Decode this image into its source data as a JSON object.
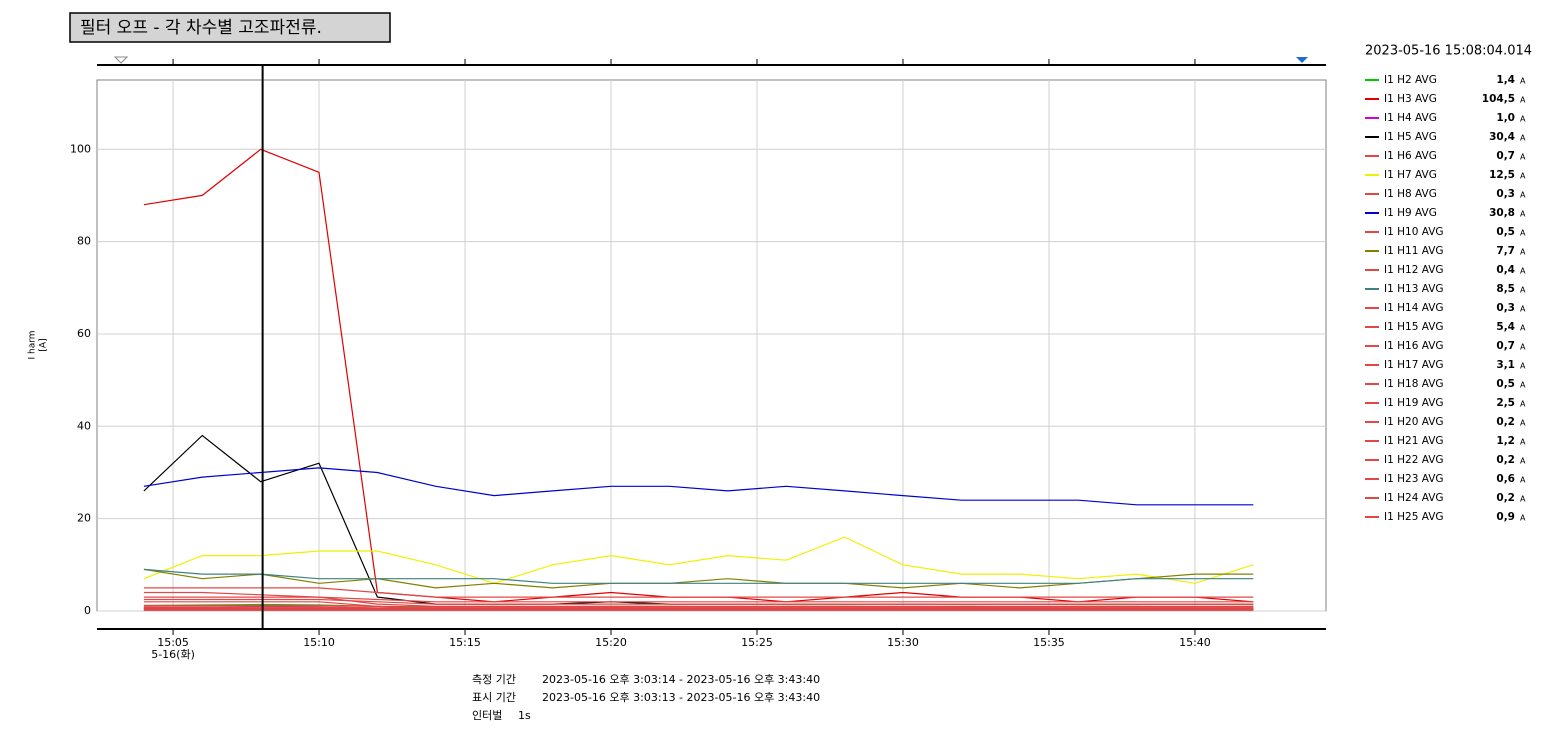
{
  "chart_data": {
    "type": "line",
    "title": "필터 오프 - 각 차수별 고조파전류.",
    "cursor_time": "2023-05-16 15:08:04.014",
    "ylabel": "I harm",
    "yunit_label": "[A]",
    "unit": "A",
    "x": [
      "15:04",
      "15:06",
      "15:08",
      "15:10",
      "15:12",
      "15:14",
      "15:16",
      "15:18",
      "15:20",
      "15:22",
      "15:24",
      "15:26",
      "15:28",
      "15:30",
      "15:32",
      "15:34",
      "15:36",
      "15:38",
      "15:40",
      "15:42"
    ],
    "xlim": [
      "15:03:13",
      "15:43:40"
    ],
    "xticks": [
      "15:05",
      "15:10",
      "15:15",
      "15:20",
      "15:25",
      "15:30",
      "15:35",
      "15:40"
    ],
    "x_date_label": "5-16(화)",
    "ylim": [
      0,
      115
    ],
    "yticks": [
      0,
      20,
      40,
      60,
      80,
      100
    ],
    "grid": true,
    "series": [
      {
        "name": "I1 H2 AVG",
        "color": "#00c800",
        "cursor_value": 1.4,
        "cursor_value_label": "1,4",
        "values": [
          1.2,
          1.3,
          1.4,
          1.3,
          1.0,
          0.9,
          1.0,
          0.9,
          1.0,
          1.0,
          0.9,
          1.0,
          1.0,
          0.9,
          1.0,
          0.9,
          1.0,
          1.0,
          0.9,
          1.0
        ]
      },
      {
        "name": "I1 H3 AVG",
        "color": "#e00000",
        "cursor_value": 104.5,
        "cursor_value_label": "104,5",
        "values": [
          88,
          90,
          100,
          95,
          4,
          3,
          2,
          3,
          4,
          3,
          3,
          2,
          3,
          4,
          3,
          3,
          2,
          3,
          3,
          2
        ]
      },
      {
        "name": "I1 H4 AVG",
        "color": "#d000d0",
        "cursor_value": 1.0,
        "cursor_value_label": "1,0",
        "values": [
          0.8,
          0.8,
          1.0,
          0.9,
          0.6,
          0.5,
          0.5,
          0.5,
          0.6,
          0.5,
          0.5,
          0.5,
          0.5,
          0.5,
          0.6,
          0.5,
          0.5,
          0.5,
          0.5,
          0.5
        ]
      },
      {
        "name": "I1 H5 AVG",
        "color": "#000000",
        "cursor_value": 30.4,
        "cursor_value_label": "30,4",
        "values": [
          26,
          38,
          28,
          32,
          3,
          1.5,
          1.5,
          1.5,
          2,
          1.5,
          1.5,
          1.5,
          1.5,
          1.5,
          1.5,
          1.5,
          1.5,
          1.5,
          1.5,
          1.5
        ]
      },
      {
        "name": "I1 H6 AVG",
        "color": "#e04848",
        "cursor_value": 0.7,
        "cursor_value_label": "0,7",
        "values": [
          4,
          4,
          3.5,
          3,
          1.5,
          1,
          1,
          1,
          1,
          1,
          1,
          1,
          1,
          1,
          1,
          1,
          1,
          1,
          1,
          1
        ]
      },
      {
        "name": "I1 H7 AVG",
        "color": "#f0f000",
        "cursor_value": 12.5,
        "cursor_value_label": "12,5",
        "values": [
          7,
          12,
          12,
          13,
          13,
          10,
          6,
          10,
          12,
          10,
          12,
          11,
          16,
          10,
          8,
          8,
          7,
          8,
          6,
          10
        ]
      },
      {
        "name": "I1 H8 AVG",
        "color": "#e04848",
        "cursor_value": 0.3,
        "cursor_value_label": "0,3",
        "values": [
          0.5,
          0.5,
          0.5,
          0.4,
          0.3,
          0.3,
          0.3,
          0.3,
          0.3,
          0.3,
          0.3,
          0.3,
          0.3,
          0.3,
          0.3,
          0.3,
          0.3,
          0.3,
          0.3,
          0.3
        ]
      },
      {
        "name": "I1 H9 AVG",
        "color": "#0000d0",
        "cursor_value": 30.8,
        "cursor_value_label": "30,8",
        "values": [
          27,
          29,
          30,
          31,
          30,
          27,
          25,
          26,
          27,
          27,
          26,
          27,
          26,
          25,
          24,
          24,
          24,
          23,
          23,
          23
        ]
      },
      {
        "name": "I1 H10 AVG",
        "color": "#e04848",
        "cursor_value": 0.5,
        "cursor_value_label": "0,5",
        "values": [
          2,
          2,
          2,
          2,
          1,
          0.5,
          0.5,
          0.5,
          0.5,
          0.5,
          0.5,
          0.5,
          0.5,
          0.5,
          0.5,
          0.5,
          0.5,
          0.5,
          0.5,
          0.5
        ]
      },
      {
        "name": "I1 H11 AVG",
        "color": "#808000",
        "cursor_value": 7.7,
        "cursor_value_label": "7,7",
        "values": [
          9,
          7,
          8,
          6,
          7,
          5,
          6,
          5,
          6,
          6,
          7,
          6,
          6,
          5,
          6,
          5,
          6,
          7,
          8,
          8
        ]
      },
      {
        "name": "I1 H12 AVG",
        "color": "#e04848",
        "cursor_value": 0.4,
        "cursor_value_label": "0,4",
        "values": [
          0.6,
          0.6,
          0.5,
          0.5,
          0.4,
          0.4,
          0.4,
          0.4,
          0.4,
          0.4,
          0.4,
          0.4,
          0.4,
          0.4,
          0.4,
          0.4,
          0.4,
          0.4,
          0.4,
          0.4
        ]
      },
      {
        "name": "I1 H13 AVG",
        "color": "#408080",
        "cursor_value": 8.5,
        "cursor_value_label": "8,5",
        "values": [
          9,
          8,
          8,
          7,
          7,
          7,
          7,
          6,
          6,
          6,
          6,
          6,
          6,
          6,
          6,
          6,
          6,
          7,
          7,
          7
        ]
      },
      {
        "name": "I1 H14 AVG",
        "color": "#e04848",
        "cursor_value": 0.3,
        "cursor_value_label": "0,3",
        "values": [
          0.4,
          0.4,
          0.3,
          0.3,
          0.3,
          0.3,
          0.3,
          0.3,
          0.3,
          0.3,
          0.3,
          0.3,
          0.3,
          0.3,
          0.3,
          0.3,
          0.3,
          0.3,
          0.3,
          0.3
        ]
      },
      {
        "name": "I1 H15 AVG",
        "color": "#e04848",
        "cursor_value": 5.4,
        "cursor_value_label": "5,4",
        "values": [
          5,
          5,
          5,
          5,
          4,
          3,
          3,
          3,
          3,
          3,
          3,
          3,
          3,
          3,
          3,
          3,
          3,
          3,
          3,
          3
        ]
      },
      {
        "name": "I1 H16 AVG",
        "color": "#e04848",
        "cursor_value": 0.7,
        "cursor_value_label": "0,7",
        "values": [
          0.7,
          0.7,
          0.7,
          0.7,
          0.5,
          0.4,
          0.4,
          0.4,
          0.4,
          0.4,
          0.4,
          0.4,
          0.4,
          0.4,
          0.4,
          0.4,
          0.4,
          0.4,
          0.4,
          0.4
        ]
      },
      {
        "name": "I1 H17 AVG",
        "color": "#e04848",
        "cursor_value": 3.1,
        "cursor_value_label": "3,1",
        "values": [
          3,
          3,
          3,
          3,
          2.5,
          2,
          2,
          2,
          2,
          2,
          2,
          2,
          2,
          2,
          2,
          2,
          2,
          2,
          2,
          2
        ]
      },
      {
        "name": "I1 H18 AVG",
        "color": "#e04848",
        "cursor_value": 0.5,
        "cursor_value_label": "0,5",
        "values": [
          0.5,
          0.5,
          0.5,
          0.5,
          0.4,
          0.3,
          0.3,
          0.3,
          0.3,
          0.3,
          0.3,
          0.3,
          0.3,
          0.3,
          0.3,
          0.3,
          0.3,
          0.3,
          0.3,
          0.3
        ]
      },
      {
        "name": "I1 H19 AVG",
        "color": "#e04848",
        "cursor_value": 2.5,
        "cursor_value_label": "2,5",
        "values": [
          2.5,
          2.5,
          2.5,
          2.5,
          2,
          1.5,
          1.5,
          1.5,
          1.5,
          1.5,
          1.5,
          1.5,
          1.5,
          1.5,
          1.5,
          1.5,
          1.5,
          1.5,
          1.5,
          1.5
        ]
      },
      {
        "name": "I1 H20 AVG",
        "color": "#e04848",
        "cursor_value": 0.2,
        "cursor_value_label": "0,2",
        "values": [
          0.2,
          0.2,
          0.2,
          0.2,
          0.2,
          0.2,
          0.2,
          0.2,
          0.2,
          0.2,
          0.2,
          0.2,
          0.2,
          0.2,
          0.2,
          0.2,
          0.2,
          0.2,
          0.2,
          0.2
        ]
      },
      {
        "name": "I1 H21 AVG",
        "color": "#e04848",
        "cursor_value": 1.2,
        "cursor_value_label": "1,2",
        "values": [
          1.2,
          1.2,
          1.2,
          1.2,
          1,
          0.8,
          0.8,
          0.8,
          0.8,
          0.8,
          0.8,
          0.8,
          0.8,
          0.8,
          0.8,
          0.8,
          0.8,
          0.8,
          0.8,
          0.8
        ]
      },
      {
        "name": "I1 H22 AVG",
        "color": "#e04848",
        "cursor_value": 0.2,
        "cursor_value_label": "0,2",
        "values": [
          0.2,
          0.2,
          0.2,
          0.2,
          0.2,
          0.2,
          0.2,
          0.2,
          0.2,
          0.2,
          0.2,
          0.2,
          0.2,
          0.2,
          0.2,
          0.2,
          0.2,
          0.2,
          0.2,
          0.2
        ]
      },
      {
        "name": "I1 H23 AVG",
        "color": "#e04848",
        "cursor_value": 0.6,
        "cursor_value_label": "0,6",
        "values": [
          0.6,
          0.6,
          0.6,
          0.6,
          0.5,
          0.4,
          0.4,
          0.4,
          0.4,
          0.4,
          0.4,
          0.4,
          0.4,
          0.4,
          0.4,
          0.4,
          0.4,
          0.4,
          0.4,
          0.4
        ]
      },
      {
        "name": "I1 H24 AVG",
        "color": "#e04848",
        "cursor_value": 0.2,
        "cursor_value_label": "0,2",
        "values": [
          0.2,
          0.2,
          0.2,
          0.2,
          0.2,
          0.2,
          0.2,
          0.2,
          0.2,
          0.2,
          0.2,
          0.2,
          0.2,
          0.2,
          0.2,
          0.2,
          0.2,
          0.2,
          0.2,
          0.2
        ]
      },
      {
        "name": "I1 H25 AVG",
        "color": "#e04848",
        "cursor_value": 0.9,
        "cursor_value_label": "0,9",
        "values": [
          0.9,
          0.9,
          0.9,
          0.9,
          0.7,
          0.6,
          0.6,
          0.6,
          0.6,
          0.6,
          0.6,
          0.6,
          0.6,
          0.6,
          0.6,
          0.6,
          0.6,
          0.6,
          0.6,
          0.6
        ]
      }
    ]
  },
  "footer": {
    "measure_label": "측정 기간",
    "measure_range": "2023-05-16 오후 3:03:14 - 2023-05-16 오후 3:43:40",
    "display_label": "표시 기간",
    "display_range": "2023-05-16 오후 3:03:13 - 2023-05-16 오후 3:43:40",
    "interval_label": "인터벌",
    "interval": "1s"
  }
}
